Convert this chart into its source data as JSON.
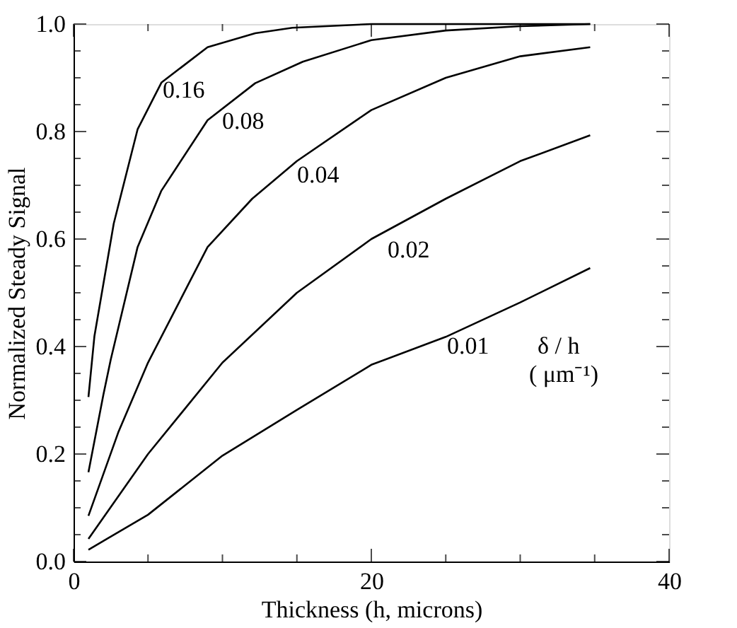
{
  "chart_data": {
    "type": "line",
    "xlabel": "Thickness (h, microns)",
    "ylabel": "Normalized Steady Signal",
    "series": [
      {
        "color": "#000000",
        "x": [
          1,
          1.4,
          2.7,
          4.3,
          5.9,
          9,
          12.2,
          14.7,
          20,
          25,
          30,
          34.7
        ],
        "values": [
          0.306,
          0.419,
          0.629,
          0.804,
          0.891,
          0.957,
          0.983,
          0.993,
          1.0,
          1.0,
          1.0,
          1.0
        ]
      },
      {
        "color": "#000000",
        "x": [
          1,
          2,
          2.5,
          4.3,
          5.9,
          9,
          12.2,
          15.4,
          20,
          25,
          30,
          34.7
        ],
        "values": [
          0.166,
          0.31,
          0.376,
          0.585,
          0.69,
          0.821,
          0.89,
          0.93,
          0.97,
          0.988,
          0.996,
          1.0
        ]
      },
      {
        "color": "#000000",
        "x": [
          1,
          3,
          5,
          9,
          12,
          15,
          20,
          25,
          30,
          34.7
        ],
        "values": [
          0.085,
          0.24,
          0.37,
          0.585,
          0.675,
          0.745,
          0.84,
          0.9,
          0.94,
          0.957
        ]
      },
      {
        "color": "#000000",
        "x": [
          1,
          5,
          10,
          15,
          20,
          25,
          30,
          34.7
        ],
        "values": [
          0.042,
          0.2,
          0.37,
          0.5,
          0.6,
          0.675,
          0.745,
          0.793
        ]
      },
      {
        "color": "#000000",
        "x": [
          1,
          5,
          10,
          15,
          20,
          25,
          30,
          34.7
        ],
        "values": [
          0.022,
          0.087,
          0.197,
          0.282,
          0.366,
          0.418,
          0.482,
          0.546
        ]
      }
    ],
    "annotations": [
      "0.16",
      "0.08",
      "0.04",
      "0.02",
      "0.01",
      "δ / h",
      "(  μm⁻¹)"
    ],
    "xlim": [
      0,
      40
    ],
    "xticks": [
      0,
      {
        "value": 5,
        "label": null
      },
      {
        "value": 10,
        "label": null
      },
      {
        "value": 15,
        "label": null
      },
      20,
      {
        "value": 25,
        "label": null
      },
      {
        "value": 30,
        "label": null
      },
      {
        "value": 35,
        "label": null
      },
      40
    ],
    "ylim": [
      0,
      1.0
    ],
    "yticks": [
      {
        "value": 0,
        "label": "0.0"
      },
      {
        "value": 0.05,
        "label": null
      },
      {
        "value": 0.1,
        "label": null
      },
      {
        "value": 0.15,
        "label": null
      },
      {
        "value": 0.2,
        "label": "0.2"
      },
      {
        "value": 0.25,
        "label": null
      },
      {
        "value": 0.3,
        "label": null
      },
      {
        "value": 0.35,
        "label": null
      },
      {
        "value": 0.4,
        "label": "0.4"
      },
      {
        "value": 0.45,
        "label": null
      },
      {
        "value": 0.5,
        "label": null
      },
      {
        "value": 0.55,
        "label": null
      },
      {
        "value": 0.6,
        "label": "0.6"
      },
      {
        "value": 0.65,
        "label": null
      },
      {
        "value": 0.7,
        "label": null
      },
      {
        "value": 0.75,
        "label": null
      },
      {
        "value": 0.8,
        "label": "0.8"
      },
      {
        "value": 0.85,
        "label": null
      },
      {
        "value": 0.9,
        "label": null
      },
      {
        "value": 0.95,
        "label": null
      },
      {
        "value": 1.0,
        "label": "1.0"
      }
    ],
    "marker": "none",
    "line_style": "solid"
  }
}
